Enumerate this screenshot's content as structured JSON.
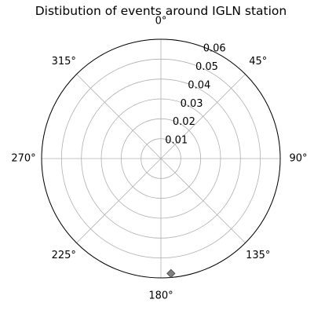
{
  "chart_data": {
    "type": "scatter",
    "projection": "polar",
    "title": "Distibution of events around IGLN station",
    "theta_zero_location": "N",
    "theta_direction": "clockwise",
    "theta_tick_labels": [
      "0°",
      "45°",
      "90°",
      "135°",
      "180°",
      "225°",
      "270°",
      "315°"
    ],
    "r_ticks": [
      0.01,
      0.02,
      0.03,
      0.04,
      0.05,
      0.06
    ],
    "r_tick_labels": [
      "0.01",
      "0.02",
      "0.03",
      "0.04",
      "0.05",
      "0.06"
    ],
    "rlim": [
      0,
      0.06
    ],
    "grid": true,
    "series": [
      {
        "marker": "diamond",
        "points": [
          {
            "theta_deg": 175,
            "r": 0.058
          }
        ]
      }
    ],
    "colors": {
      "marker_fill": "#808080",
      "marker_edge": "#555555",
      "grid": "#b0b0b0",
      "frame": "#000000"
    }
  }
}
